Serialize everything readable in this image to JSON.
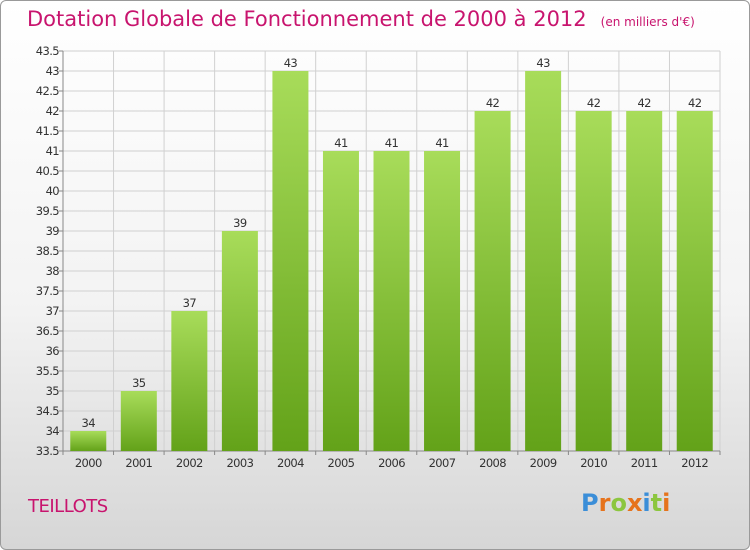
{
  "title": "Dotation Globale de Fonctionnement de 2000 à 2012",
  "subtitle": "(en milliers d'€)",
  "commune": "TEILLOTS",
  "logo": {
    "letters": [
      "P",
      "r",
      "o",
      "x",
      "i",
      "t",
      "i"
    ],
    "colors": [
      "#3b8ed8",
      "#e6731c",
      "#8cc63f",
      "#e6731c",
      "#3b8ed8",
      "#8cc63f",
      "#e6731c"
    ]
  },
  "colors": {
    "bar_light": "#a8dc5a",
    "bar_dark": "#63a219",
    "title": "#c8146e"
  },
  "chart_data": {
    "type": "bar",
    "title": "Dotation Globale de Fonctionnement de 2000 à 2012",
    "subtitle": "(en milliers d'€)",
    "xlabel": "",
    "ylabel": "",
    "categories": [
      "2000",
      "2001",
      "2002",
      "2003",
      "2004",
      "2005",
      "2006",
      "2007",
      "2008",
      "2009",
      "2010",
      "2011",
      "2012"
    ],
    "values": [
      34,
      35,
      37,
      39,
      43,
      41,
      41,
      41,
      42,
      43,
      42,
      42,
      42
    ],
    "ylim": [
      33.5,
      43.5
    ],
    "yticks": [
      "33.5",
      "34",
      "34.5",
      "35",
      "35.5",
      "36",
      "36.5",
      "37",
      "37.5",
      "38",
      "38.5",
      "39",
      "39.5",
      "40",
      "40.5",
      "41",
      "41.5",
      "42",
      "42.5",
      "43",
      "43.5"
    ],
    "grid": true,
    "legend": "none"
  }
}
